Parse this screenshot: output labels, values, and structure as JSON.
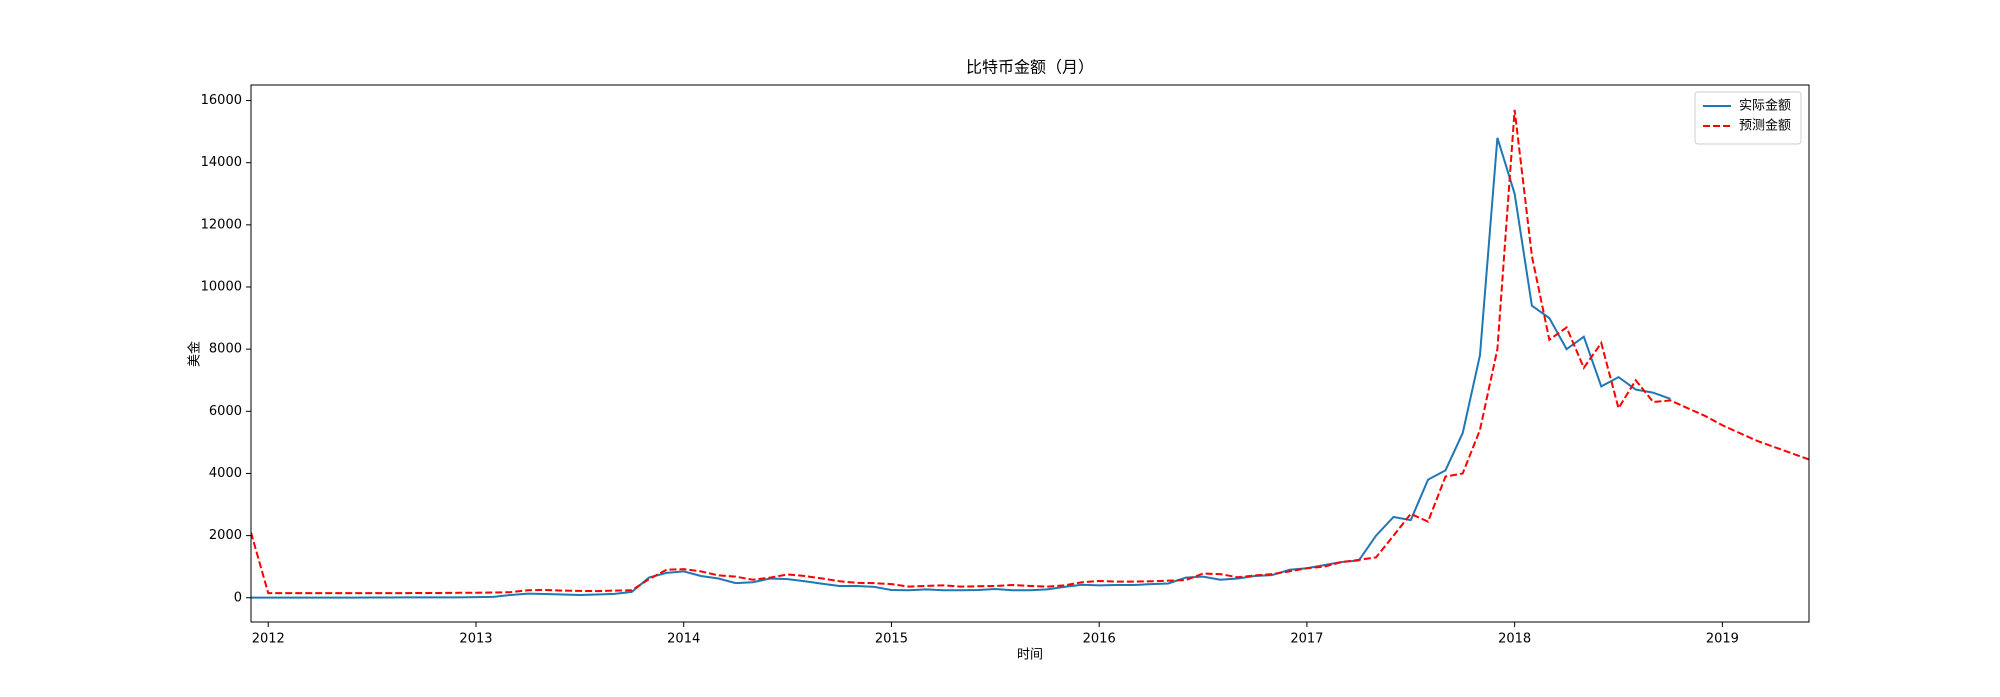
{
  "chart_data": {
    "type": "line",
    "title": "比特币金额（月）",
    "x_label": "时间",
    "y_label": "美金",
    "x": [
      2011.917,
      2012.0,
      2012.083,
      2012.167,
      2012.25,
      2012.333,
      2012.417,
      2012.5,
      2012.583,
      2012.667,
      2012.75,
      2012.833,
      2012.917,
      2013.0,
      2013.083,
      2013.167,
      2013.25,
      2013.333,
      2013.417,
      2013.5,
      2013.583,
      2013.667,
      2013.75,
      2013.833,
      2013.917,
      2014.0,
      2014.083,
      2014.167,
      2014.25,
      2014.333,
      2014.417,
      2014.5,
      2014.583,
      2014.667,
      2014.75,
      2014.833,
      2014.917,
      2015.0,
      2015.083,
      2015.167,
      2015.25,
      2015.333,
      2015.417,
      2015.5,
      2015.583,
      2015.667,
      2015.75,
      2015.833,
      2015.917,
      2016.0,
      2016.083,
      2016.167,
      2016.25,
      2016.333,
      2016.417,
      2016.5,
      2016.583,
      2016.667,
      2016.75,
      2016.833,
      2016.917,
      2017.0,
      2017.083,
      2017.167,
      2017.25,
      2017.333,
      2017.417,
      2017.5,
      2017.583,
      2017.667,
      2017.75,
      2017.833,
      2017.917,
      2018.0,
      2018.083,
      2018.167,
      2018.25,
      2018.333,
      2018.417,
      2018.5,
      2018.583,
      2018.667,
      2018.75,
      2018.833,
      2018.917,
      2019.0,
      2019.083,
      2019.167,
      2019.25,
      2019.333,
      2019.417
    ],
    "series": [
      {
        "name": "实际金额",
        "color": "#1f77b4",
        "dashed": false,
        "values": [
          3,
          5,
          5,
          5,
          6,
          5,
          6,
          7,
          10,
          11,
          12,
          11,
          13,
          20,
          30,
          90,
          135,
          120,
          105,
          90,
          105,
          125,
          190,
          650,
          800,
          850,
          700,
          620,
          470,
          500,
          620,
          600,
          530,
          450,
          380,
          380,
          350,
          250,
          240,
          270,
          240,
          240,
          250,
          280,
          240,
          240,
          270,
          350,
          420,
          400,
          410,
          410,
          440,
          460,
          650,
          680,
          580,
          620,
          700,
          730,
          900,
          950,
          1050,
          1150,
          1200,
          2000,
          2600,
          2500,
          3800,
          4100,
          5300,
          7800,
          14800,
          13000,
          9400,
          9000,
          8000,
          8400,
          6800,
          7100,
          6700,
          6600,
          6400,
          null,
          null,
          null,
          null,
          null,
          null,
          null,
          null
        ]
      },
      {
        "name": "预测金额",
        "color": "#ff0000",
        "dashed": true,
        "values": [
          2100,
          150,
          150,
          150,
          150,
          150,
          150,
          150,
          150,
          150,
          155,
          155,
          160,
          160,
          170,
          180,
          240,
          250,
          230,
          220,
          215,
          230,
          240,
          600,
          900,
          920,
          850,
          720,
          680,
          580,
          650,
          750,
          700,
          620,
          530,
          480,
          470,
          440,
          360,
          380,
          400,
          360,
          370,
          380,
          410,
          380,
          360,
          400,
          500,
          540,
          520,
          520,
          530,
          550,
          570,
          780,
          760,
          660,
          720,
          760,
          850,
          950,
          1000,
          1150,
          1220,
          1300,
          2000,
          2700,
          2450,
          3900,
          4000,
          5400,
          8000,
          15700,
          11000,
          8300,
          8700,
          7400,
          8200,
          6100,
          7000,
          6300,
          6350,
          6100,
          5850,
          5550,
          5300,
          5050,
          4850,
          4650,
          4450
        ]
      }
    ],
    "xlim": [
      2011.917,
      2019.417
    ],
    "ylim": [
      -780,
      16500
    ],
    "xticks": [
      2012,
      2013,
      2014,
      2015,
      2016,
      2017,
      2018,
      2019
    ],
    "yticks": [
      0,
      2000,
      4000,
      6000,
      8000,
      10000,
      12000,
      14000,
      16000
    ],
    "grid": false,
    "legend": "upper right"
  }
}
